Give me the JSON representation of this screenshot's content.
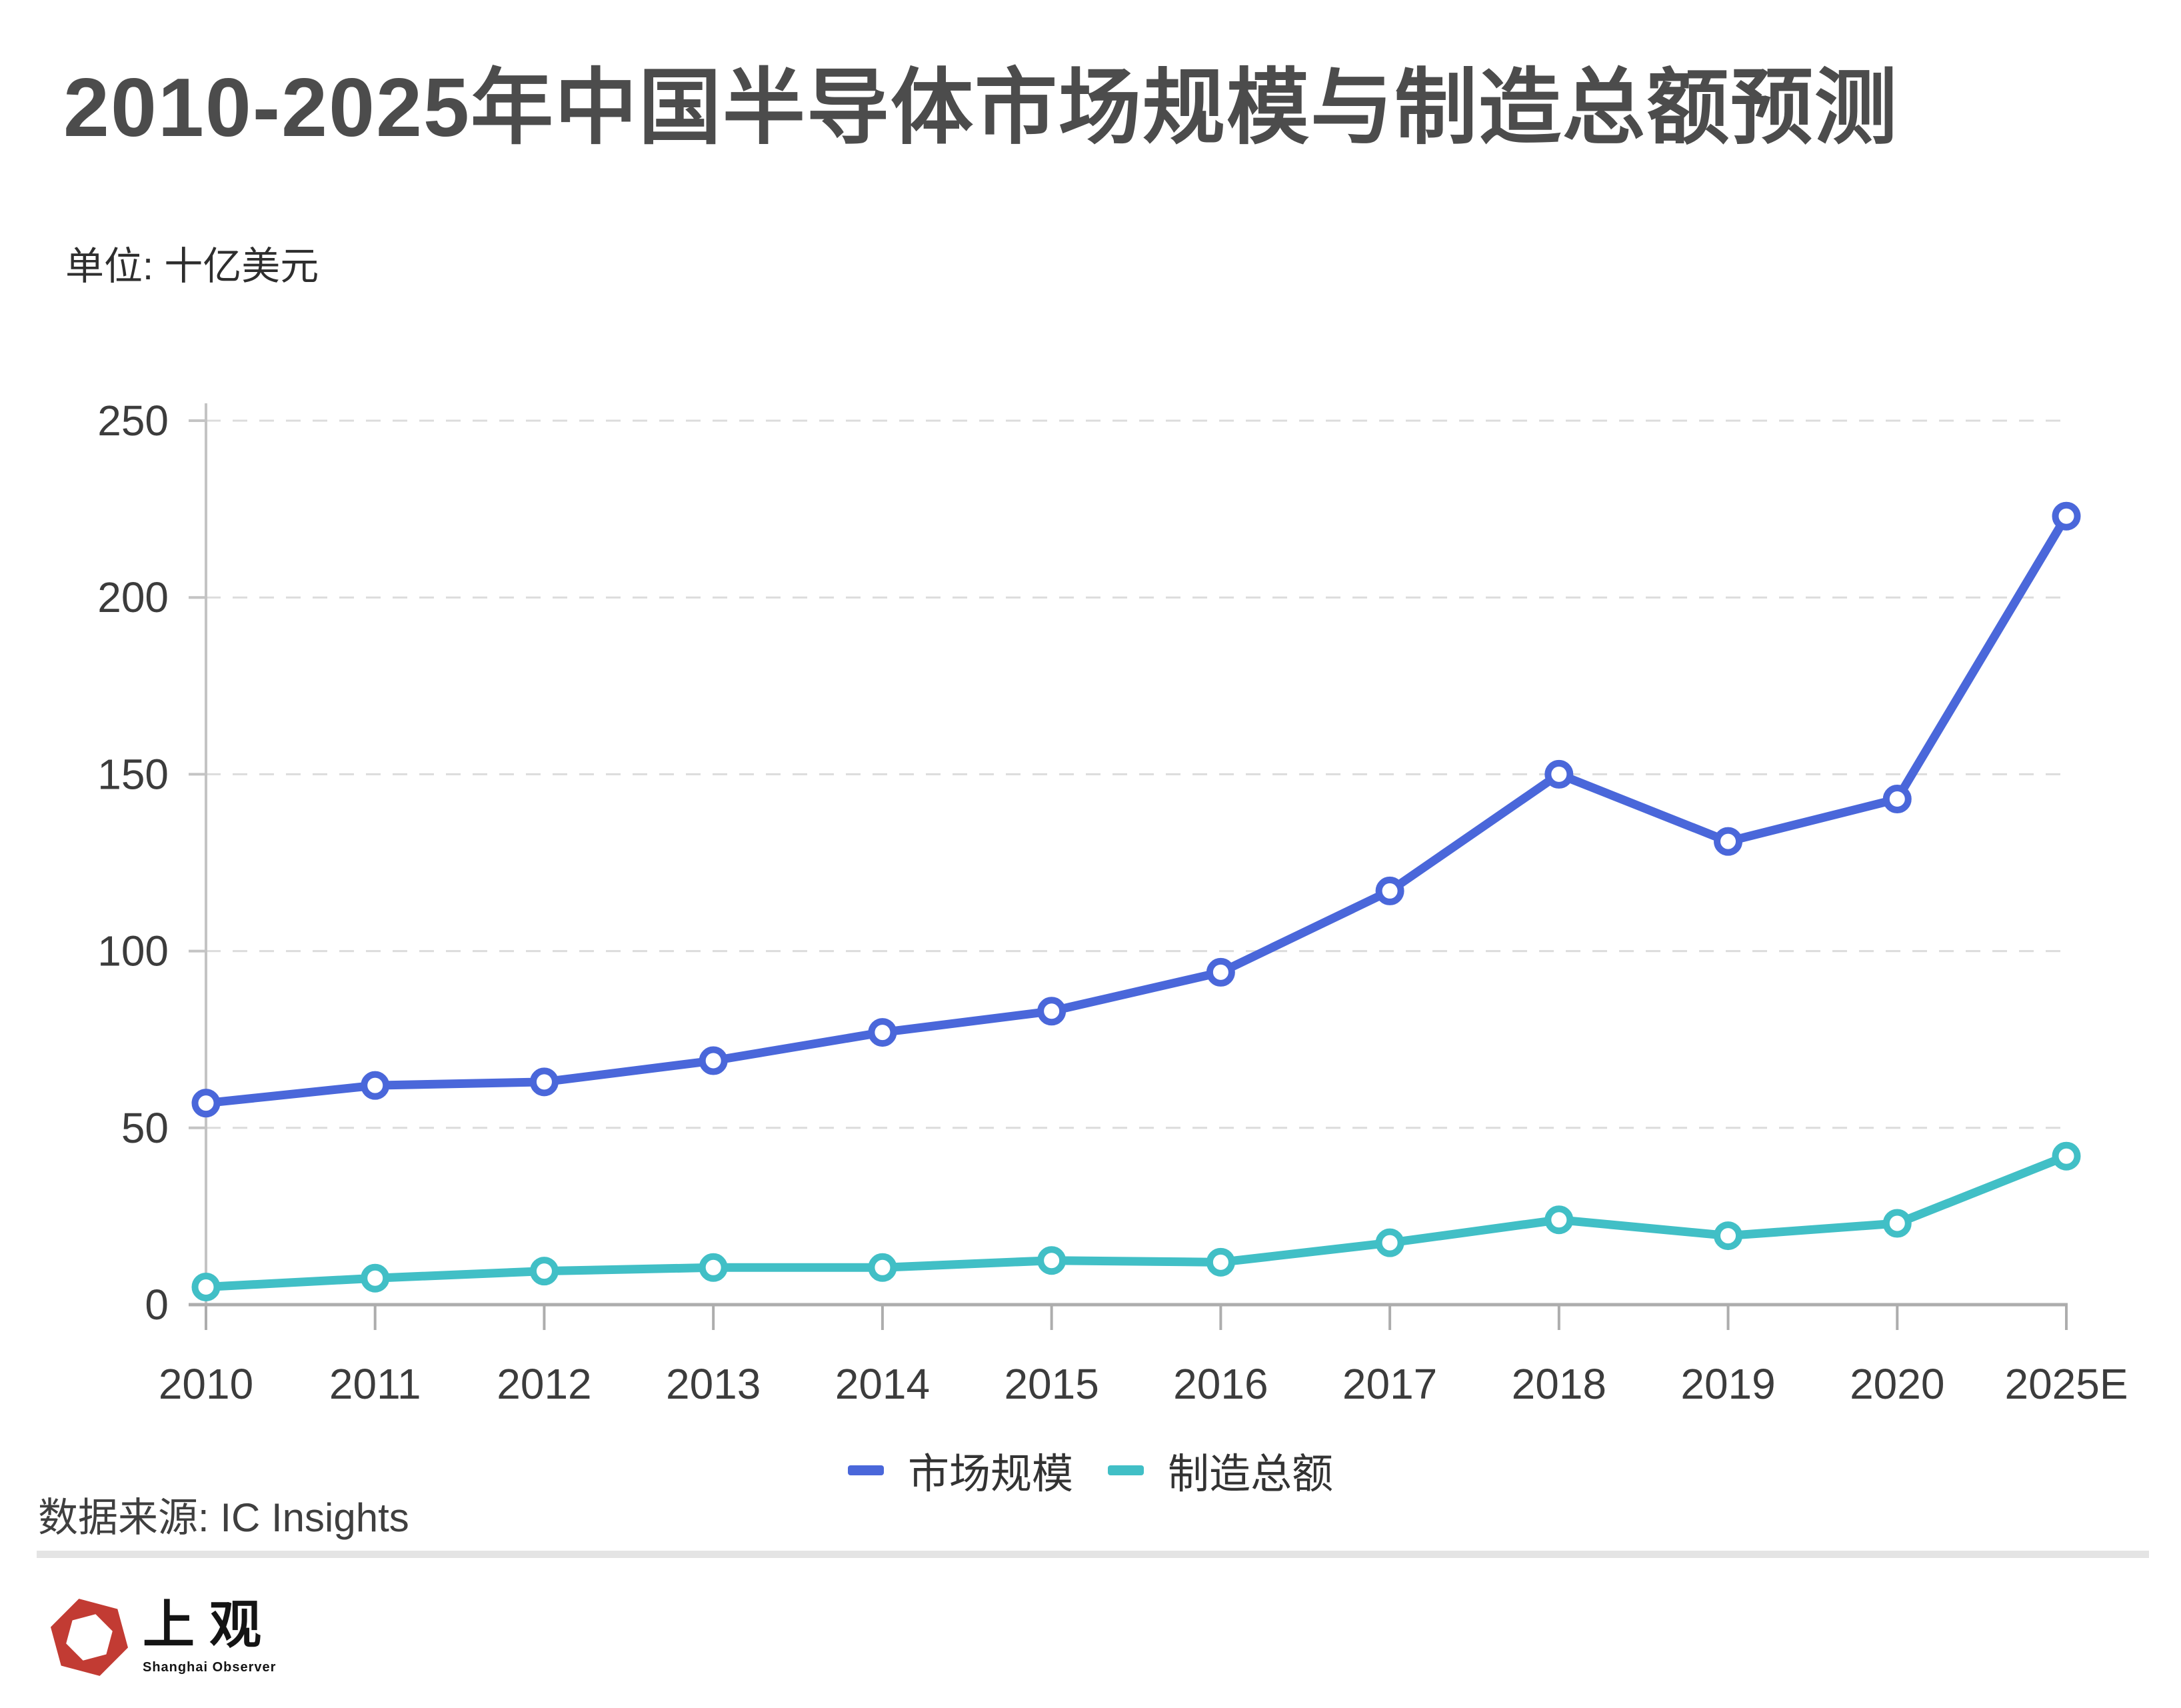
{
  "header": {
    "title": "2010-2025年中国半导体市场规模与制造总额预测",
    "subtitle": "单位: 十亿美元"
  },
  "chart_data": {
    "type": "line",
    "title": "2010-2025年中国半导体市场规模与制造总额预测",
    "unit": "十亿美元",
    "categories": [
      "2010",
      "2011",
      "2012",
      "2013",
      "2014",
      "2015",
      "2016",
      "2017",
      "2018",
      "2019",
      "2020",
      "2025E"
    ],
    "series": [
      {
        "name": "市场规模",
        "color": "#4a67da",
        "values": [
          57,
          62,
          63,
          69,
          77,
          83,
          94,
          117,
          150,
          131,
          143,
          223
        ]
      },
      {
        "name": "制造总额",
        "color": "#41bfc6",
        "values": [
          5,
          7.5,
          9.5,
          10.5,
          10.5,
          12.5,
          12,
          17.5,
          24,
          19.5,
          23,
          42
        ]
      }
    ],
    "xlabel": "",
    "ylabel": "",
    "ylim": [
      0,
      250
    ],
    "yticks": [
      0,
      50,
      100,
      150,
      200,
      250
    ],
    "grid": "horizontal-dashed",
    "legend_position": "bottom"
  },
  "footer": {
    "source": "数据来源: IC Insights"
  },
  "logo": {
    "cn": "上观",
    "en": "Shanghai Observer",
    "red": "#c23b33"
  },
  "style": {
    "gridline_color": "#dcdcdc",
    "axis_color": "#adadad",
    "tick_label_color": "#3c3c3c",
    "title_color": "#4c4c4c"
  }
}
